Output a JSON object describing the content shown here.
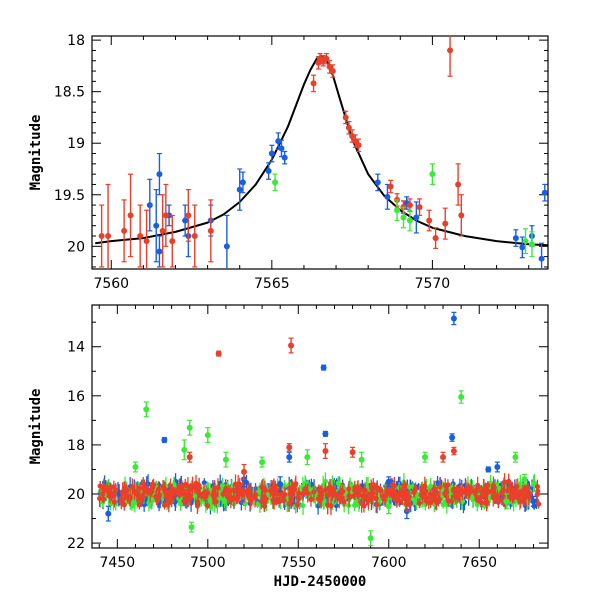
{
  "chart_data": [
    {
      "type": "scatter",
      "panel": "top",
      "xlabel": "",
      "ylabel": "Magnitude",
      "xlim": [
        7559.4,
        7573.6
      ],
      "ylim": [
        20.22,
        17.96
      ],
      "y_inverted": true,
      "grid": false,
      "x_major_ticks": [
        7560,
        7565,
        7570
      ],
      "x_tick_labels": [
        "7560",
        "7565",
        "7570"
      ],
      "y_major_ticks": [
        18,
        18.5,
        19,
        19.5,
        20
      ],
      "y_tick_labels": [
        "18",
        "18.5",
        "19",
        "19.5",
        "20"
      ],
      "colors": {
        "blue": "#1a5fe0",
        "red": "#e8402a",
        "green": "#3ee83a",
        "model": "#000000"
      },
      "model_curve": {
        "name": "",
        "x": [
          7559.5,
          7560,
          7561,
          7562,
          7563,
          7563.5,
          7564,
          7564.5,
          7565,
          7565.5,
          7566,
          7566.2,
          7566.4,
          7566.55,
          7566.7,
          7566.9,
          7567.1,
          7567.5,
          7568,
          7568.5,
          7569,
          7569.5,
          7570,
          7571,
          7572,
          7573,
          7573.6
        ],
        "y": [
          19.97,
          19.95,
          19.92,
          19.86,
          19.77,
          19.69,
          19.57,
          19.4,
          19.16,
          18.84,
          18.43,
          18.29,
          18.18,
          18.15,
          18.19,
          18.34,
          18.55,
          18.96,
          19.3,
          19.51,
          19.65,
          19.75,
          19.82,
          19.9,
          19.95,
          19.98,
          19.99
        ]
      },
      "series": [
        {
          "name": "",
          "color": "blue",
          "points": [
            [
              7561.2,
              19.6,
              0.25
            ],
            [
              7561.4,
              19.8,
              0.35
            ],
            [
              7561.5,
              19.3,
              0.2
            ],
            [
              7561.5,
              20.05,
              0.15
            ],
            [
              7561.8,
              19.7,
              0.1
            ],
            [
              7562.3,
              19.75,
              0.15
            ],
            [
              7562.4,
              19.9,
              0.2
            ],
            [
              7563.1,
              19.75,
              0.15
            ],
            [
              7563.6,
              20.0,
              0.3
            ],
            [
              7564.0,
              19.45,
              0.2
            ],
            [
              7564.1,
              19.38,
              0.1
            ],
            [
              7564.9,
              19.27,
              0.08
            ],
            [
              7565.0,
              19.1,
              0.08
            ],
            [
              7565.2,
              18.98,
              0.08
            ],
            [
              7565.3,
              19.05,
              0.08
            ],
            [
              7565.4,
              19.14,
              0.06
            ],
            [
              7568.3,
              19.38,
              0.08
            ],
            [
              7568.6,
              19.52,
              0.12
            ],
            [
              7569.1,
              19.62,
              0.06
            ],
            [
              7569.2,
              19.58,
              0.06
            ],
            [
              7569.5,
              19.72,
              0.15
            ],
            [
              7572.6,
              19.92,
              0.08
            ],
            [
              7572.8,
              20.01,
              0.1
            ],
            [
              7573.1,
              19.9,
              0.1
            ],
            [
              7573.4,
              20.12,
              0.15
            ],
            [
              7573.5,
              19.48,
              0.08
            ]
          ]
        },
        {
          "name": "",
          "color": "red",
          "points": [
            [
              7559.7,
              19.9,
              0.3
            ],
            [
              7559.9,
              19.9,
              0.5
            ],
            [
              7560.4,
              19.85,
              0.3
            ],
            [
              7560.6,
              19.7,
              0.4
            ],
            [
              7560.9,
              19.9,
              0.3
            ],
            [
              7561.1,
              19.95,
              0.3
            ],
            [
              7561.6,
              19.85,
              0.35
            ],
            [
              7561.7,
              19.7,
              0.3
            ],
            [
              7561.9,
              19.95,
              0.25
            ],
            [
              7562.4,
              19.7,
              0.25
            ],
            [
              7562.6,
              19.9,
              0.3
            ],
            [
              7563.1,
              19.85,
              0.3
            ],
            [
              7566.3,
              18.42,
              0.08
            ],
            [
              7566.45,
              18.22,
              0.06
            ],
            [
              7566.5,
              18.18,
              0.05
            ],
            [
              7566.6,
              18.2,
              0.05
            ],
            [
              7566.7,
              18.18,
              0.05
            ],
            [
              7566.8,
              18.26,
              0.06
            ],
            [
              7566.9,
              18.3,
              0.06
            ],
            [
              7567.3,
              18.75,
              0.06
            ],
            [
              7567.4,
              18.85,
              0.06
            ],
            [
              7567.5,
              18.93,
              0.06
            ],
            [
              7567.6,
              18.98,
              0.06
            ],
            [
              7567.7,
              19.02,
              0.06
            ],
            [
              7568.7,
              19.42,
              0.06
            ],
            [
              7568.9,
              19.55,
              0.06
            ],
            [
              7569.1,
              19.62,
              0.06
            ],
            [
              7569.3,
              19.6,
              0.06
            ],
            [
              7569.6,
              19.62,
              0.08
            ],
            [
              7569.9,
              19.75,
              0.1
            ],
            [
              7570.1,
              19.92,
              0.1
            ],
            [
              7570.4,
              19.78,
              0.15
            ],
            [
              7570.55,
              18.1,
              0.25
            ],
            [
              7570.8,
              19.4,
              0.2
            ],
            [
              7570.9,
              19.7,
              0.2
            ]
          ]
        },
        {
          "name": "",
          "color": "green",
          "points": [
            [
              7565.1,
              19.38,
              0.08
            ],
            [
              7568.9,
              19.65,
              0.1
            ],
            [
              7569.1,
              19.72,
              0.1
            ],
            [
              7569.3,
              19.75,
              0.1
            ],
            [
              7570.0,
              19.3,
              0.1
            ],
            [
              7572.9,
              19.95,
              0.12
            ],
            [
              7573.1,
              19.98,
              0.12
            ]
          ]
        }
      ]
    },
    {
      "type": "scatter",
      "panel": "bottom",
      "xlabel": "HJD-2450000",
      "ylabel": "Magnitude",
      "xlim": [
        7436,
        7688
      ],
      "ylim": [
        22.2,
        12.3
      ],
      "y_inverted": true,
      "grid": false,
      "x_major_ticks": [
        7450,
        7500,
        7550,
        7600,
        7650
      ],
      "x_tick_labels": [
        "7450",
        "7500",
        "7550",
        "7600",
        "7650"
      ],
      "y_major_ticks": [
        14,
        16,
        18,
        20,
        22
      ],
      "y_tick_labels": [
        "14",
        "16",
        "18",
        "20",
        "22"
      ],
      "baseline_magnitude": 20.0,
      "baseline_x_range": [
        7440,
        7683
      ],
      "series": [
        {
          "name": "",
          "color": "blue",
          "points": [
            [
              7476,
              17.8,
              0.1
            ],
            [
              7636,
              12.85,
              0.25
            ],
            [
              7635,
              17.7,
              0.15
            ],
            [
              7564,
              14.85,
              0.1
            ],
            [
              7600,
              19.5,
              0.2
            ],
            [
              7520,
              19.4,
              0.3
            ],
            [
              7540,
              19.6,
              0.3
            ],
            [
              7610,
              20.7,
              0.3
            ],
            [
              7660,
              18.9,
              0.2
            ],
            [
              7680,
              20.3,
              0.2
            ],
            [
              7445,
              20.8,
              0.3
            ],
            [
              7565,
              17.55,
              0.1
            ],
            [
              7545,
              18.5,
              0.2
            ],
            [
              7655,
              19.0,
              0.1
            ]
          ]
        },
        {
          "name": "",
          "color": "red",
          "points": [
            [
              7506,
              14.28,
              0.1
            ],
            [
              7546,
              13.95,
              0.3
            ],
            [
              7580,
              18.3,
              0.2
            ],
            [
              7545,
              18.1,
              0.15
            ],
            [
              7490,
              18.5,
              0.2
            ],
            [
              7565,
              18.25,
              0.3
            ],
            [
              7636,
              18.25,
              0.15
            ],
            [
              7630,
              18.5,
              0.2
            ],
            [
              7520,
              19.1,
              0.3
            ],
            [
              7610,
              20.4,
              0.3
            ]
          ]
        },
        {
          "name": "",
          "color": "green",
          "points": [
            [
              7466,
              16.55,
              0.3
            ],
            [
              7640,
              16.05,
              0.25
            ],
            [
              7487,
              18.2,
              0.4
            ],
            [
              7490,
              17.3,
              0.3
            ],
            [
              7500,
              17.6,
              0.3
            ],
            [
              7491,
              21.35,
              0.2
            ],
            [
              7590,
              21.8,
              0.3
            ],
            [
              7510,
              18.6,
              0.3
            ],
            [
              7555,
              18.5,
              0.3
            ],
            [
              7585,
              18.6,
              0.3
            ],
            [
              7620,
              18.5,
              0.2
            ],
            [
              7670,
              18.5,
              0.2
            ],
            [
              7460,
              18.9,
              0.2
            ],
            [
              7530,
              18.7,
              0.2
            ],
            [
              7665,
              20.3,
              0.3
            ],
            [
              7675,
              19.4,
              0.2
            ],
            [
              7600,
              20.5,
              0.3
            ]
          ]
        }
      ]
    }
  ]
}
